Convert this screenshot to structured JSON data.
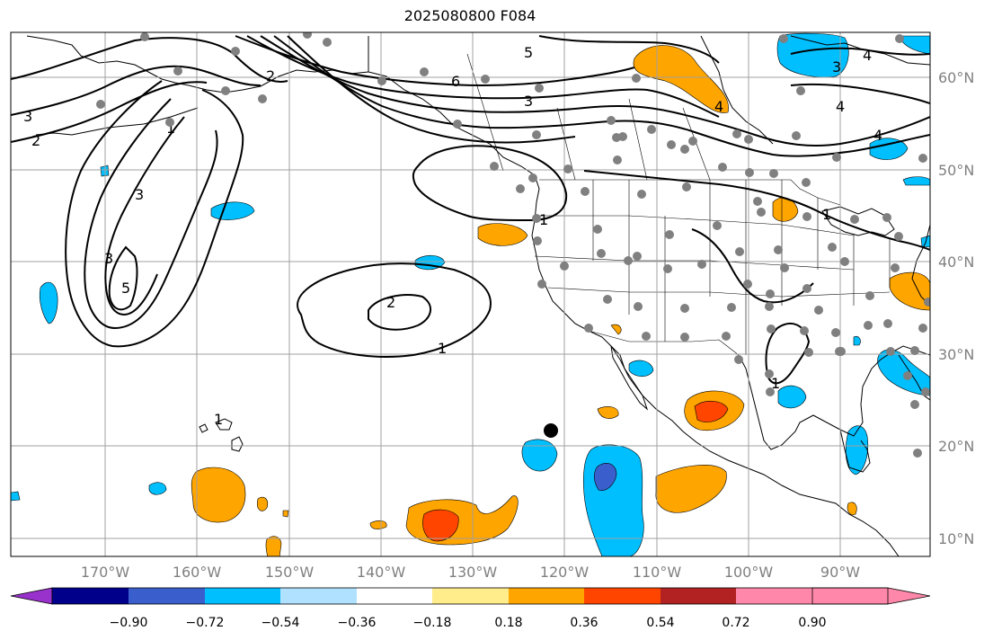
{
  "title": "2025080800 F084",
  "lon_labels": [
    "170°W",
    "160°W",
    "150°W",
    "140°W",
    "130°W",
    "120°W",
    "110°W",
    "100°W",
    "90°W"
  ],
  "lat_labels": [
    "60°N",
    "50°N",
    "40°N",
    "30°N",
    "20°N",
    "10°N"
  ],
  "colorbar": {
    "ticks": [
      "−0.90",
      "−0.72",
      "−0.54",
      "−0.36",
      "−0.18",
      "0.18",
      "0.36",
      "0.54",
      "0.72",
      "0.90"
    ],
    "colors": [
      "#9932cc",
      "#00008b",
      "#3a5fcd",
      "#00bfff",
      "#b0e2ff",
      "#ffffff",
      "#ffec8b",
      "#ffa500",
      "#ff4500",
      "#b22222",
      "#ff88aa"
    ]
  },
  "contour_labels": [
    "5",
    "6",
    "3",
    "4",
    "3",
    "2",
    "1",
    "3",
    "4",
    "5",
    "2",
    "1",
    "1",
    "4",
    "4",
    "3",
    "1",
    "1",
    "1",
    "2",
    "3"
  ],
  "colors": {
    "contour": "#000000",
    "grid": "#a0a0a0",
    "land_outline": "#000000",
    "station": "#808080"
  }
}
